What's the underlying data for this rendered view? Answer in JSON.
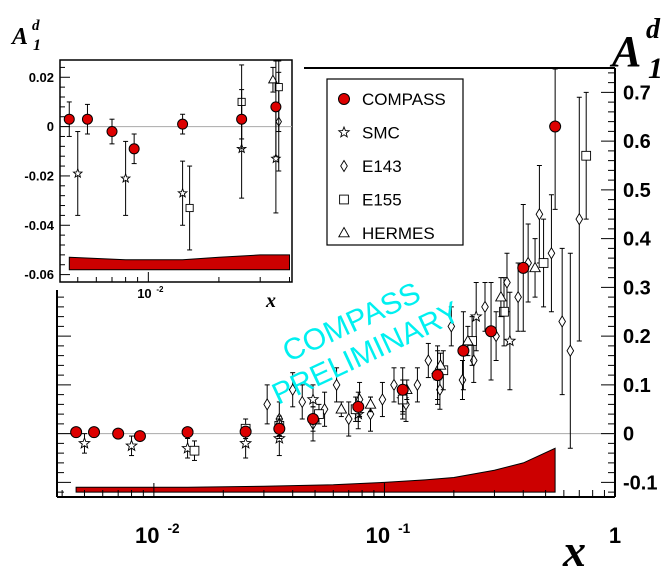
{
  "chart_data": [
    {
      "type": "scatter",
      "panel": "main",
      "title": "",
      "xscale": "log",
      "xlim": [
        0.0038,
        1.0
      ],
      "ylim": [
        -0.13,
        0.75
      ],
      "x_ticks": [
        {
          "v": 0.01,
          "label": "10",
          "exp": "-2"
        },
        {
          "v": 0.1,
          "label": "10",
          "exp": "-1"
        },
        {
          "v": 1.0,
          "label": "1",
          "exp": ""
        }
      ],
      "y_ticks": [
        {
          "v": -0.1,
          "label": "-0.1"
        },
        {
          "v": 0.0,
          "label": "0"
        },
        {
          "v": 0.1,
          "label": "0.1"
        },
        {
          "v": 0.2,
          "label": "0.2"
        },
        {
          "v": 0.3,
          "label": "0.3"
        },
        {
          "v": 0.4,
          "label": "0.4"
        },
        {
          "v": 0.5,
          "label": "0.5"
        },
        {
          "v": 0.6,
          "label": "0.6"
        },
        {
          "v": 0.7,
          "label": "0.7"
        }
      ],
      "ylabel": {
        "base": "A",
        "sub": "1",
        "sup": "d"
      },
      "xlabel": "x",
      "watermark": [
        "COMPASS",
        "PRELIMINARY"
      ],
      "legend": {
        "placement": "top-center",
        "entries": [
          {
            "name": "COMPASS",
            "marker": "filled-circle"
          },
          {
            "name": "SMC",
            "marker": "star"
          },
          {
            "name": "E143",
            "marker": "diamond"
          },
          {
            "name": "E155",
            "marker": "square"
          },
          {
            "name": "HERMES",
            "marker": "triangle"
          }
        ]
      },
      "series": [
        {
          "name": "COMPASS",
          "marker": "filled-circle",
          "points": [
            {
              "x": 0.0046,
              "y": 0.003,
              "err": 0.008
            },
            {
              "x": 0.0055,
              "y": 0.003,
              "err": 0.007
            },
            {
              "x": 0.007,
              "y": 0.0,
              "err": 0.006
            },
            {
              "x": 0.0087,
              "y": -0.005,
              "err": 0.007
            },
            {
              "x": 0.014,
              "y": 0.003,
              "err": 0.005
            },
            {
              "x": 0.025,
              "y": 0.004,
              "err": 0.01
            },
            {
              "x": 0.035,
              "y": 0.01,
              "err": 0.02
            },
            {
              "x": 0.049,
              "y": 0.03,
              "err": 0.025
            },
            {
              "x": 0.077,
              "y": 0.055,
              "err": 0.03
            },
            {
              "x": 0.12,
              "y": 0.09,
              "err": 0.045
            },
            {
              "x": 0.17,
              "y": 0.12,
              "err": 0.06
            },
            {
              "x": 0.22,
              "y": 0.17,
              "err": 0.08
            },
            {
              "x": 0.29,
              "y": 0.21,
              "err": 0.1
            },
            {
              "x": 0.4,
              "y": 0.34,
              "err": 0.13
            },
            {
              "x": 0.55,
              "y": 0.63,
              "err": 0.17
            }
          ]
        },
        {
          "name": "SMC",
          "marker": "star",
          "points": [
            {
              "x": 0.005,
              "y": -0.02,
              "err": 0.02
            },
            {
              "x": 0.008,
              "y": -0.025,
              "err": 0.02
            },
            {
              "x": 0.014,
              "y": -0.03,
              "err": 0.02
            },
            {
              "x": 0.025,
              "y": -0.02,
              "err": 0.03
            },
            {
              "x": 0.035,
              "y": -0.01,
              "err": 0.035
            },
            {
              "x": 0.049,
              "y": 0.07,
              "err": 0.03
            },
            {
              "x": 0.077,
              "y": 0.04,
              "err": 0.03
            },
            {
              "x": 0.12,
              "y": 0.07,
              "err": 0.04
            },
            {
              "x": 0.17,
              "y": 0.12,
              "err": 0.05
            },
            {
              "x": 0.25,
              "y": 0.24,
              "err": 0.07
            },
            {
              "x": 0.35,
              "y": 0.19,
              "err": 0.1
            }
          ]
        },
        {
          "name": "E143",
          "marker": "diamond",
          "points": [
            {
              "x": 0.031,
              "y": 0.06,
              "err": 0.04
            },
            {
              "x": 0.035,
              "y": 0.03,
              "err": 0.035
            },
            {
              "x": 0.04,
              "y": 0.09,
              "err": 0.035
            },
            {
              "x": 0.044,
              "y": 0.065,
              "err": 0.035
            },
            {
              "x": 0.049,
              "y": 0.02,
              "err": 0.035
            },
            {
              "x": 0.055,
              "y": 0.05,
              "err": 0.035
            },
            {
              "x": 0.062,
              "y": 0.1,
              "err": 0.035
            },
            {
              "x": 0.07,
              "y": 0.03,
              "err": 0.035
            },
            {
              "x": 0.078,
              "y": 0.07,
              "err": 0.035
            },
            {
              "x": 0.087,
              "y": 0.04,
              "err": 0.035
            },
            {
              "x": 0.098,
              "y": 0.07,
              "err": 0.035
            },
            {
              "x": 0.11,
              "y": 0.1,
              "err": 0.035
            },
            {
              "x": 0.124,
              "y": 0.06,
              "err": 0.035
            },
            {
              "x": 0.139,
              "y": 0.1,
              "err": 0.035
            },
            {
              "x": 0.155,
              "y": 0.15,
              "err": 0.035
            },
            {
              "x": 0.174,
              "y": 0.09,
              "err": 0.04
            },
            {
              "x": 0.195,
              "y": 0.22,
              "err": 0.04
            },
            {
              "x": 0.218,
              "y": 0.11,
              "err": 0.04
            },
            {
              "x": 0.244,
              "y": 0.15,
              "err": 0.045
            },
            {
              "x": 0.273,
              "y": 0.26,
              "err": 0.05
            },
            {
              "x": 0.305,
              "y": 0.2,
              "err": 0.05
            },
            {
              "x": 0.34,
              "y": 0.31,
              "err": 0.06
            },
            {
              "x": 0.38,
              "y": 0.28,
              "err": 0.07
            },
            {
              "x": 0.42,
              "y": 0.35,
              "err": 0.08
            },
            {
              "x": 0.47,
              "y": 0.45,
              "err": 0.1
            },
            {
              "x": 0.53,
              "y": 0.37,
              "err": 0.12
            },
            {
              "x": 0.59,
              "y": 0.23,
              "err": 0.15
            },
            {
              "x": 0.64,
              "y": 0.17,
              "err": 0.2
            },
            {
              "x": 0.7,
              "y": 0.44,
              "err": 0.25
            }
          ]
        },
        {
          "name": "E155",
          "marker": "square",
          "points": [
            {
              "x": 0.015,
              "y": -0.035,
              "err": 0.02
            },
            {
              "x": 0.025,
              "y": 0.01,
              "err": 0.02
            },
            {
              "x": 0.035,
              "y": 0.016,
              "err": 0.02
            },
            {
              "x": 0.052,
              "y": 0.04,
              "err": 0.02
            },
            {
              "x": 0.075,
              "y": 0.05,
              "err": 0.025
            },
            {
              "x": 0.12,
              "y": 0.07,
              "err": 0.03
            },
            {
              "x": 0.18,
              "y": 0.13,
              "err": 0.04
            },
            {
              "x": 0.24,
              "y": 0.19,
              "err": 0.05
            },
            {
              "x": 0.33,
              "y": 0.25,
              "err": 0.07
            },
            {
              "x": 0.49,
              "y": 0.35,
              "err": 0.09
            },
            {
              "x": 0.75,
              "y": 0.57,
              "err": 0.13
            }
          ]
        },
        {
          "name": "HERMES",
          "marker": "triangle",
          "points": [
            {
              "x": 0.035,
              "y": 0.02,
              "err": 0.01
            },
            {
              "x": 0.065,
              "y": 0.05,
              "err": 0.015
            },
            {
              "x": 0.087,
              "y": 0.06,
              "err": 0.015
            },
            {
              "x": 0.125,
              "y": 0.09,
              "err": 0.02
            },
            {
              "x": 0.175,
              "y": 0.14,
              "err": 0.025
            },
            {
              "x": 0.23,
              "y": 0.19,
              "err": 0.03
            },
            {
              "x": 0.32,
              "y": 0.28,
              "err": 0.04
            },
            {
              "x": 0.45,
              "y": 0.34,
              "err": 0.06
            }
          ]
        }
      ],
      "systematic_band": {
        "color": "#cc0000",
        "base": -0.12,
        "x": [
          0.0046,
          0.014,
          0.03,
          0.06,
          0.1,
          0.15,
          0.2,
          0.3,
          0.4,
          0.55
        ],
        "top": [
          -0.11,
          -0.11,
          -0.108,
          -0.105,
          -0.1,
          -0.095,
          -0.09,
          -0.075,
          -0.06,
          -0.03
        ]
      }
    },
    {
      "type": "scatter",
      "panel": "inset",
      "xscale": "log",
      "xlim": [
        0.0042,
        0.041
      ],
      "ylim": [
        -0.063,
        0.027
      ],
      "x_ticks": [
        {
          "v": 0.01,
          "label": "10",
          "exp": "-2"
        }
      ],
      "y_ticks": [
        {
          "v": 0.02,
          "label": "0.02"
        },
        {
          "v": 0.0,
          "label": "0"
        },
        {
          "v": -0.02,
          "label": "-0.02"
        },
        {
          "v": -0.04,
          "label": "-0.04"
        },
        {
          "v": -0.06,
          "label": "-0.06"
        }
      ],
      "ylabel": {
        "base": "A",
        "sub": "1",
        "sup": "d"
      },
      "xlabel": "x",
      "series": [
        {
          "name": "COMPASS",
          "marker": "filled-circle",
          "points": [
            {
              "x": 0.0046,
              "y": 0.003,
              "err": 0.007
            },
            {
              "x": 0.0055,
              "y": 0.003,
              "err": 0.006
            },
            {
              "x": 0.007,
              "y": -0.002,
              "err": 0.005
            },
            {
              "x": 0.0087,
              "y": -0.009,
              "err": 0.006
            },
            {
              "x": 0.014,
              "y": 0.001,
              "err": 0.004
            },
            {
              "x": 0.025,
              "y": 0.003,
              "err": 0.012
            },
            {
              "x": 0.035,
              "y": 0.008,
              "err": 0.02
            }
          ]
        },
        {
          "name": "SMC",
          "marker": "star",
          "points": [
            {
              "x": 0.005,
              "y": -0.019,
              "err": 0.017
            },
            {
              "x": 0.008,
              "y": -0.021,
              "err": 0.015
            },
            {
              "x": 0.014,
              "y": -0.027,
              "err": 0.013
            },
            {
              "x": 0.025,
              "y": -0.009,
              "err": 0.02
            },
            {
              "x": 0.035,
              "y": -0.013,
              "err": 0.022
            }
          ]
        },
        {
          "name": "E143",
          "marker": "diamond",
          "points": [
            {
              "x": 0.036,
              "y": 0.002,
              "err": 0.02
            }
          ]
        },
        {
          "name": "E155",
          "marker": "square",
          "points": [
            {
              "x": 0.015,
              "y": -0.033,
              "err": 0.017
            },
            {
              "x": 0.025,
              "y": 0.01,
              "err": 0.015
            },
            {
              "x": 0.036,
              "y": 0.016,
              "err": 0.018
            }
          ]
        },
        {
          "name": "HERMES",
          "marker": "triangle",
          "points": [
            {
              "x": 0.034,
              "y": 0.019,
              "err": 0.005
            }
          ]
        }
      ],
      "systematic_band": {
        "color": "#cc0000",
        "base": -0.058,
        "x": [
          0.0046,
          0.008,
          0.014,
          0.02,
          0.03,
          0.04
        ],
        "top": [
          -0.053,
          -0.054,
          -0.054,
          -0.053,
          -0.052,
          -0.052
        ]
      }
    }
  ]
}
